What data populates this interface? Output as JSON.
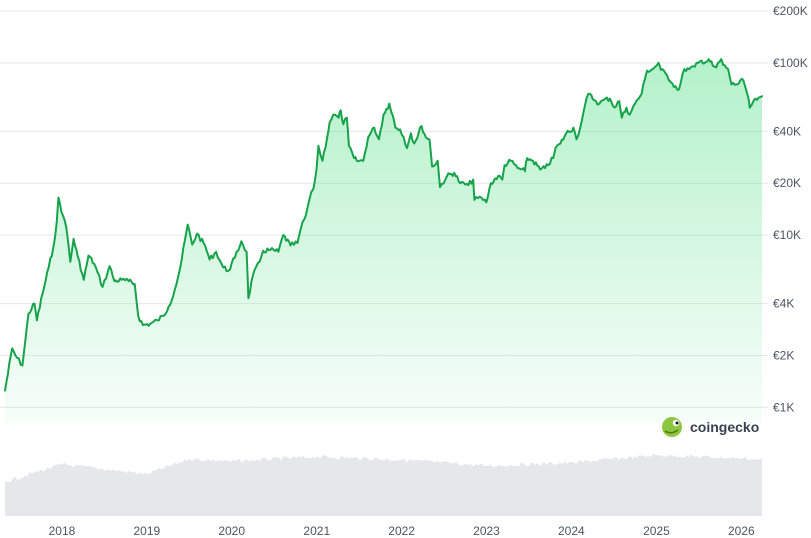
{
  "watermark": {
    "brand": "coingecko",
    "icon": "gecko-logo-icon"
  },
  "colors": {
    "line": "#16a34a",
    "area_top": "#4ade80",
    "grid": "#e5e7eb",
    "volume": "#e5e7eb",
    "label": "#4b5563"
  },
  "chart_data": {
    "type": "line",
    "title": "",
    "xlabel": "",
    "ylabel": "",
    "yscale": "log",
    "currency_symbol": "€",
    "ylim": [
      800,
      200000
    ],
    "xlim": [
      "2017-05-01",
      "2026-03-31"
    ],
    "y_ticks": [
      {
        "value": 1000,
        "label": "€1K"
      },
      {
        "value": 2000,
        "label": "€2K"
      },
      {
        "value": 4000,
        "label": "€4K"
      },
      {
        "value": 10000,
        "label": "€10K"
      },
      {
        "value": 20000,
        "label": "€20K"
      },
      {
        "value": 40000,
        "label": "€40K"
      },
      {
        "value": 100000,
        "label": "€100K"
      },
      {
        "value": 200000,
        "label": "€200K"
      }
    ],
    "x_ticks": [
      {
        "value": "2018-01-01",
        "label": "2018"
      },
      {
        "value": "2019-01-01",
        "label": "2019"
      },
      {
        "value": "2020-01-01",
        "label": "2020"
      },
      {
        "value": "2021-01-01",
        "label": "2021"
      },
      {
        "value": "2022-01-01",
        "label": "2022"
      },
      {
        "value": "2023-01-01",
        "label": "2023"
      },
      {
        "value": "2024-01-01",
        "label": "2024"
      },
      {
        "value": "2025-01-01",
        "label": "2025"
      },
      {
        "value": "2026-01-01",
        "label": "2026"
      }
    ],
    "grid": true,
    "legend": "none",
    "series": [
      {
        "x": [
          "2017-05-01",
          "2017-06-01",
          "2017-06-15",
          "2017-07-15",
          "2017-08-10",
          "2017-09-05",
          "2017-09-15",
          "2017-10-10",
          "2017-11-05",
          "2017-11-25",
          "2017-12-10",
          "2017-12-17",
          "2018-01-05",
          "2018-01-20",
          "2018-02-06",
          "2018-02-20",
          "2018-03-10",
          "2018-04-05",
          "2018-04-25",
          "2018-05-20",
          "2018-06-25",
          "2018-07-25",
          "2018-08-15",
          "2018-09-15",
          "2018-10-15",
          "2018-11-10",
          "2018-11-25",
          "2018-12-15",
          "2019-01-15",
          "2019-02-15",
          "2019-03-15",
          "2019-04-05",
          "2019-05-01",
          "2019-05-25",
          "2019-06-26",
          "2019-07-15",
          "2019-08-05",
          "2019-09-10",
          "2019-09-28",
          "2019-10-26",
          "2019-11-25",
          "2019-12-18",
          "2020-01-15",
          "2020-02-12",
          "2020-03-05",
          "2020-03-13",
          "2020-04-01",
          "2020-04-30",
          "2020-05-15",
          "2020-06-15",
          "2020-07-20",
          "2020-08-10",
          "2020-09-10",
          "2020-10-10",
          "2020-10-25",
          "2020-11-15",
          "2020-11-30",
          "2020-12-17",
          "2020-12-31",
          "2021-01-08",
          "2021-01-25",
          "2021-02-15",
          "2021-02-25",
          "2021-03-13",
          "2021-04-05",
          "2021-04-14",
          "2021-04-25",
          "2021-05-10",
          "2021-05-19",
          "2021-06-10",
          "2021-06-22",
          "2021-07-20",
          "2021-08-10",
          "2021-09-05",
          "2021-09-25",
          "2021-10-15",
          "2021-11-09",
          "2021-11-25",
          "2021-12-05",
          "2021-12-25",
          "2022-01-10",
          "2022-01-24",
          "2022-02-10",
          "2022-02-24",
          "2022-03-28",
          "2022-04-15",
          "2022-05-01",
          "2022-05-12",
          "2022-06-05",
          "2022-06-15",
          "2022-07-15",
          "2022-08-15",
          "2022-09-10",
          "2022-10-15",
          "2022-11-05",
          "2022-11-10",
          "2022-12-10",
          "2022-12-31",
          "2023-01-20",
          "2023-02-20",
          "2023-03-10",
          "2023-03-20",
          "2023-04-15",
          "2023-05-15",
          "2023-06-15",
          "2023-06-25",
          "2023-07-20",
          "2023-08-20",
          "2023-09-10",
          "2023-10-15",
          "2023-10-25",
          "2023-11-15",
          "2023-12-10",
          "2024-01-10",
          "2024-01-23",
          "2024-02-15",
          "2024-02-28",
          "2024-03-14",
          "2024-04-15",
          "2024-05-01",
          "2024-05-20",
          "2024-06-15",
          "2024-07-05",
          "2024-07-25",
          "2024-08-05",
          "2024-08-25",
          "2024-09-07",
          "2024-10-01",
          "2024-10-29",
          "2024-11-12",
          "2024-11-22",
          "2024-12-17",
          "2025-01-10",
          "2025-01-20",
          "2025-02-15",
          "2025-03-10",
          "2025-04-08",
          "2025-05-01",
          "2025-05-22",
          "2025-06-15",
          "2025-07-14",
          "2025-08-01",
          "2025-08-14",
          "2025-09-01",
          "2025-09-15",
          "2025-10-06",
          "2025-10-15",
          "2025-11-05",
          "2025-11-20",
          "2025-12-10",
          "2026-01-10",
          "2026-01-28",
          "2026-02-06",
          "2026-02-20",
          "2026-03-10",
          "2026-03-31"
        ],
        "y": [
          1250,
          2200,
          2000,
          1750,
          3500,
          4000,
          3200,
          4600,
          6500,
          8500,
          12000,
          16500,
          13000,
          11000,
          7000,
          9500,
          7500,
          5500,
          7600,
          6800,
          5000,
          6600,
          5400,
          5500,
          5400,
          5200,
          3400,
          3000,
          3050,
          3200,
          3400,
          3850,
          4800,
          6500,
          11500,
          8800,
          10200,
          8600,
          7200,
          8000,
          6500,
          6200,
          7400,
          9200,
          8000,
          4300,
          5800,
          7000,
          8100,
          8200,
          8000,
          10000,
          8700,
          9000,
          11000,
          13000,
          16000,
          18500,
          24000,
          33000,
          27000,
          37000,
          45000,
          50000,
          48000,
          53000,
          44000,
          48000,
          33000,
          28000,
          27000,
          27000,
          37000,
          42000,
          36000,
          50000,
          58000,
          49000,
          42000,
          41000,
          37000,
          32000,
          39000,
          34000,
          43000,
          37000,
          36000,
          25000,
          27000,
          19000,
          22000,
          23000,
          20000,
          19500,
          21000,
          16000,
          16500,
          15500,
          20000,
          22000,
          21000,
          25500,
          27000,
          24500,
          23500,
          28000,
          27000,
          24000,
          24500,
          28000,
          32000,
          34000,
          39000,
          42000,
          36000,
          46000,
          56000,
          66000,
          60000,
          58000,
          61000,
          62000,
          55000,
          60000,
          48000,
          55000,
          50000,
          58000,
          66000,
          80000,
          90000,
          92000,
          100000,
          91000,
          85000,
          76000,
          70000,
          92000,
          92000,
          95000,
          103000,
          101000,
          105000,
          96000,
          94000,
          105000,
          97000,
          92000,
          75000,
          75000,
          79000,
          65000,
          55000,
          59000,
          61000,
          64000
        ]
      }
    ],
    "volume_series": {
      "x": [
        "2017-05-01",
        "2018-01-01",
        "2019-01-01",
        "2019-07-01",
        "2020-01-01",
        "2021-01-01",
        "2022-01-01",
        "2023-01-01",
        "2024-01-01",
        "2025-01-01",
        "2026-01-01",
        "2026-03-31"
      ],
      "y": [
        0.45,
        0.68,
        0.55,
        0.75,
        0.72,
        0.78,
        0.74,
        0.66,
        0.7,
        0.8,
        0.76,
        0.74
      ]
    }
  }
}
